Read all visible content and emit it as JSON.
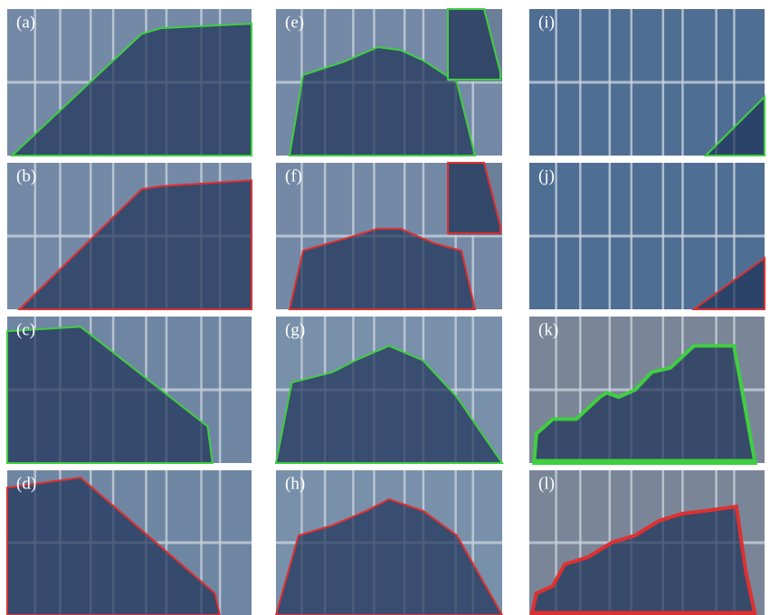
{
  "panels": [
    {
      "label": "(a)"
    },
    {
      "label": "(e)"
    },
    {
      "label": "(i)"
    },
    {
      "label": "(b)"
    },
    {
      "label": "(f)"
    },
    {
      "label": "(j)"
    },
    {
      "label": "(c)"
    },
    {
      "label": "(g)"
    },
    {
      "label": "(k)"
    },
    {
      "label": "(d)"
    },
    {
      "label": "(h)"
    },
    {
      "label": "(l)"
    }
  ]
}
